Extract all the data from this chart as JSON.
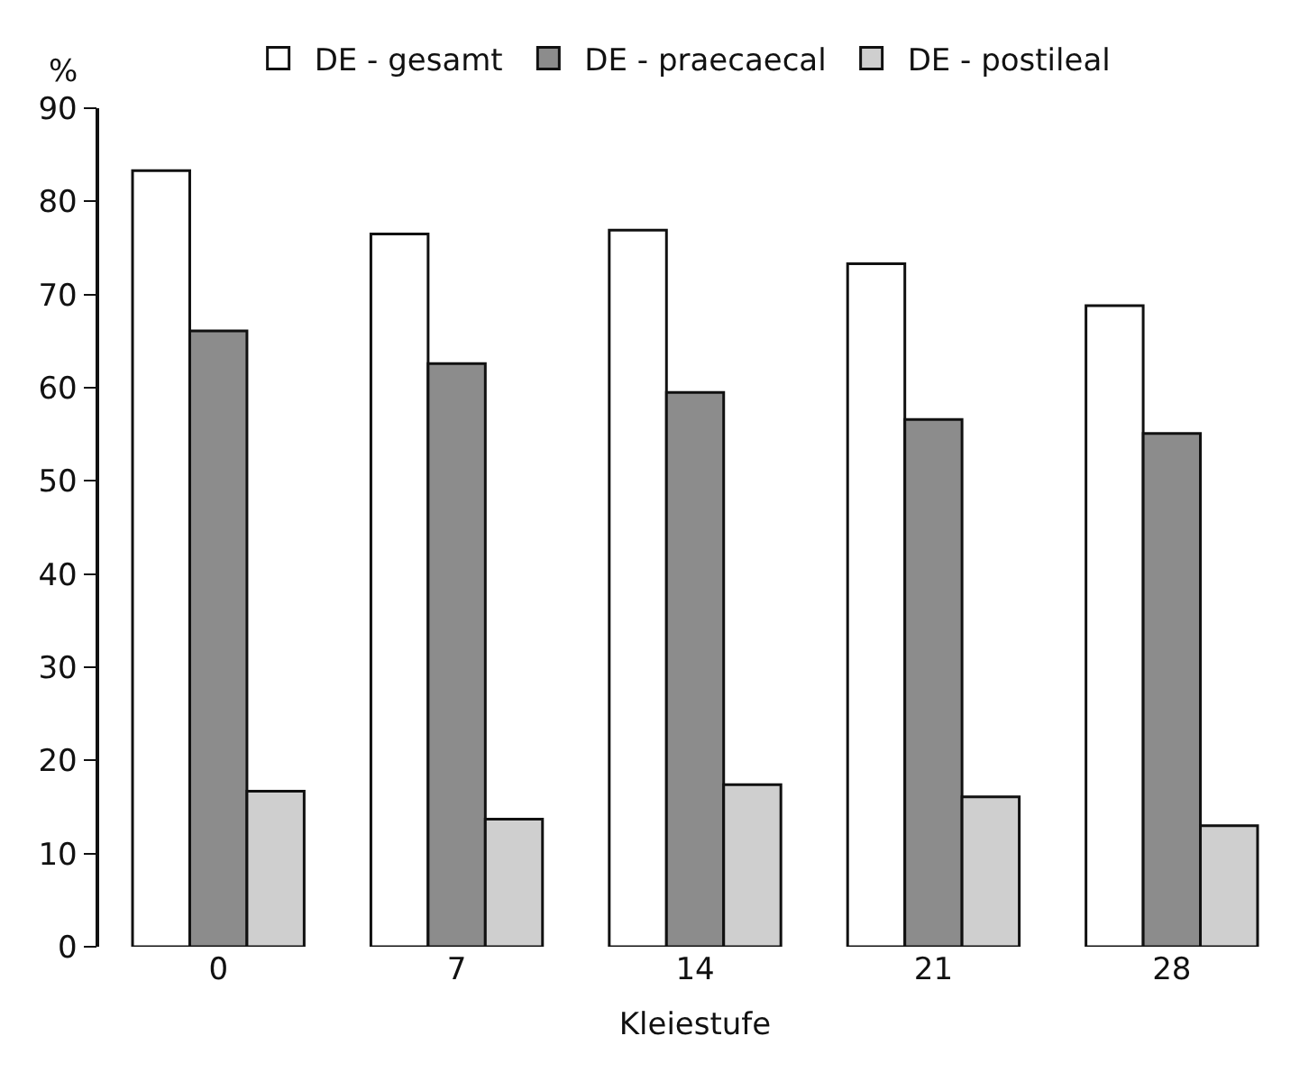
{
  "chart_data": {
    "type": "bar",
    "ylabel": "%",
    "xlabel": "Kleiestufe",
    "categories": [
      "0",
      "7",
      "14",
      "21",
      "28"
    ],
    "series": [
      {
        "name": "DE - gesamt",
        "color": "#ffffff",
        "values": [
          83.3,
          76.5,
          76.9,
          73.3,
          68.8
        ]
      },
      {
        "name": "DE - praecaecal",
        "color": "#8c8c8c",
        "values": [
          66.1,
          62.6,
          59.5,
          56.6,
          55.1
        ]
      },
      {
        "name": "DE - postileal",
        "color": "#cfcfcf",
        "values": [
          16.7,
          13.7,
          17.4,
          16.1,
          13.0
        ]
      }
    ],
    "ylim": [
      0,
      90
    ],
    "yticks": [
      0,
      10,
      20,
      30,
      40,
      50,
      60,
      70,
      80,
      90
    ],
    "grid": false,
    "legend": "top"
  }
}
